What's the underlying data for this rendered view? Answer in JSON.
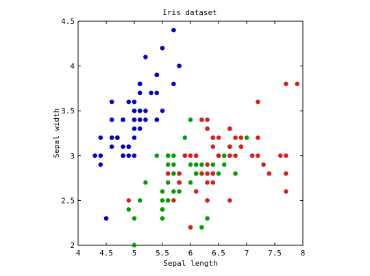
{
  "chart_data": {
    "type": "scatter",
    "title": "Iris dataset",
    "xlabel": "Sepal length",
    "ylabel": "Sepal width",
    "xlim": [
      4,
      8
    ],
    "ylim": [
      2,
      4.5
    ],
    "xticks": [
      "4",
      "4.5",
      "5",
      "5.5",
      "6",
      "6.5",
      "7",
      "7.5",
      "8"
    ],
    "yticks": [
      "2",
      "2.5",
      "3",
      "3.5",
      "4",
      "4.5"
    ],
    "grid": false,
    "legend": "none",
    "series": [
      {
        "color": "#0000c8",
        "points": [
          [
            5.1,
            3.5
          ],
          [
            4.9,
            3.0
          ],
          [
            4.7,
            3.2
          ],
          [
            4.6,
            3.1
          ],
          [
            5.0,
            3.6
          ],
          [
            5.4,
            3.9
          ],
          [
            4.6,
            3.4
          ],
          [
            5.0,
            3.4
          ],
          [
            4.4,
            2.9
          ],
          [
            4.9,
            3.1
          ],
          [
            5.4,
            3.7
          ],
          [
            4.8,
            3.4
          ],
          [
            4.8,
            3.0
          ],
          [
            4.3,
            3.0
          ],
          [
            5.8,
            4.0
          ],
          [
            5.7,
            4.4
          ],
          [
            5.4,
            3.9
          ],
          [
            5.1,
            3.5
          ],
          [
            5.7,
            3.8
          ],
          [
            5.1,
            3.8
          ],
          [
            5.4,
            3.4
          ],
          [
            5.1,
            3.7
          ],
          [
            4.6,
            3.6
          ],
          [
            5.1,
            3.3
          ],
          [
            4.8,
            3.4
          ],
          [
            5.0,
            3.0
          ],
          [
            5.0,
            3.4
          ],
          [
            5.2,
            3.5
          ],
          [
            5.2,
            3.4
          ],
          [
            4.7,
            3.2
          ],
          [
            4.8,
            3.1
          ],
          [
            5.4,
            3.4
          ],
          [
            5.2,
            4.1
          ],
          [
            5.5,
            4.2
          ],
          [
            4.9,
            3.1
          ],
          [
            5.0,
            3.2
          ],
          [
            5.5,
            3.5
          ],
          [
            4.9,
            3.6
          ],
          [
            4.4,
            3.0
          ],
          [
            5.1,
            3.4
          ],
          [
            5.0,
            3.5
          ],
          [
            4.5,
            2.3
          ],
          [
            4.4,
            3.2
          ],
          [
            5.0,
            3.5
          ],
          [
            5.1,
            3.8
          ],
          [
            4.8,
            3.0
          ],
          [
            5.1,
            3.8
          ],
          [
            4.6,
            3.2
          ],
          [
            5.3,
            3.7
          ],
          [
            5.0,
            3.3
          ]
        ]
      },
      {
        "color": "#00a000",
        "points": [
          [
            7.0,
            3.2
          ],
          [
            6.4,
            3.2
          ],
          [
            6.9,
            3.1
          ],
          [
            5.5,
            2.3
          ],
          [
            6.5,
            2.8
          ],
          [
            5.7,
            2.8
          ],
          [
            6.3,
            3.3
          ],
          [
            4.9,
            2.4
          ],
          [
            6.6,
            2.9
          ],
          [
            5.2,
            2.7
          ],
          [
            5.0,
            2.0
          ],
          [
            5.9,
            3.0
          ],
          [
            6.0,
            2.2
          ],
          [
            6.1,
            2.9
          ],
          [
            5.6,
            2.9
          ],
          [
            6.7,
            3.1
          ],
          [
            5.6,
            3.0
          ],
          [
            5.8,
            2.7
          ],
          [
            6.2,
            2.2
          ],
          [
            5.6,
            2.5
          ],
          [
            5.9,
            3.2
          ],
          [
            6.1,
            2.8
          ],
          [
            6.3,
            2.5
          ],
          [
            6.1,
            2.8
          ],
          [
            6.4,
            2.9
          ],
          [
            6.6,
            3.0
          ],
          [
            6.8,
            2.8
          ],
          [
            6.7,
            3.0
          ],
          [
            6.0,
            2.9
          ],
          [
            5.7,
            2.6
          ],
          [
            5.5,
            2.4
          ],
          [
            5.5,
            2.4
          ],
          [
            5.8,
            2.7
          ],
          [
            6.0,
            2.7
          ],
          [
            5.4,
            3.0
          ],
          [
            6.0,
            3.4
          ],
          [
            6.7,
            3.1
          ],
          [
            6.3,
            2.3
          ],
          [
            5.6,
            3.0
          ],
          [
            5.5,
            2.5
          ],
          [
            5.5,
            2.6
          ],
          [
            6.1,
            3.0
          ],
          [
            5.8,
            2.6
          ],
          [
            5.0,
            2.3
          ],
          [
            5.6,
            2.7
          ],
          [
            5.7,
            3.0
          ],
          [
            5.7,
            2.9
          ],
          [
            6.2,
            2.9
          ],
          [
            5.1,
            2.5
          ],
          [
            5.7,
            2.8
          ]
        ]
      },
      {
        "color": "#d81e1e",
        "points": [
          [
            6.3,
            3.3
          ],
          [
            5.8,
            2.7
          ],
          [
            7.1,
            3.0
          ],
          [
            6.3,
            2.9
          ],
          [
            6.5,
            3.0
          ],
          [
            7.6,
            3.0
          ],
          [
            4.9,
            2.5
          ],
          [
            7.3,
            2.9
          ],
          [
            6.7,
            2.5
          ],
          [
            7.2,
            3.6
          ],
          [
            6.5,
            3.2
          ],
          [
            6.4,
            2.7
          ],
          [
            6.8,
            3.0
          ],
          [
            5.7,
            2.5
          ],
          [
            5.8,
            2.8
          ],
          [
            6.4,
            3.2
          ],
          [
            6.5,
            3.0
          ],
          [
            7.7,
            3.8
          ],
          [
            7.7,
            2.6
          ],
          [
            6.0,
            2.2
          ],
          [
            6.9,
            3.2
          ],
          [
            5.6,
            2.8
          ],
          [
            7.7,
            2.8
          ],
          [
            6.3,
            2.7
          ],
          [
            6.7,
            3.3
          ],
          [
            7.2,
            3.2
          ],
          [
            6.2,
            2.8
          ],
          [
            6.1,
            3.0
          ],
          [
            6.4,
            2.8
          ],
          [
            7.2,
            3.0
          ],
          [
            7.4,
            2.8
          ],
          [
            7.9,
            3.8
          ],
          [
            6.4,
            2.8
          ],
          [
            6.3,
            2.8
          ],
          [
            6.1,
            2.6
          ],
          [
            7.7,
            3.0
          ],
          [
            6.3,
            3.4
          ],
          [
            6.4,
            3.1
          ],
          [
            6.0,
            3.0
          ],
          [
            6.9,
            3.1
          ],
          [
            6.7,
            3.1
          ],
          [
            6.9,
            3.1
          ],
          [
            5.8,
            2.7
          ],
          [
            6.8,
            3.2
          ],
          [
            6.7,
            3.3
          ],
          [
            6.7,
            3.0
          ],
          [
            6.3,
            2.5
          ],
          [
            6.5,
            3.0
          ],
          [
            6.2,
            3.4
          ],
          [
            5.9,
            3.0
          ]
        ]
      }
    ]
  }
}
